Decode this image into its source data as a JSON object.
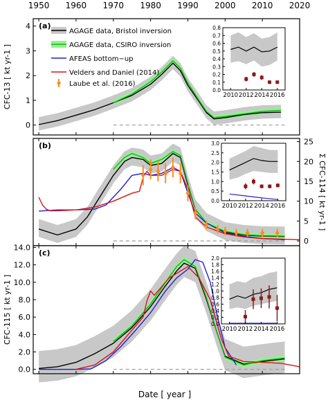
{
  "figure": {
    "xaxis": {
      "label": "Date [ year ]",
      "ticks": [
        1950,
        1960,
        1970,
        1980,
        1990,
        2000,
        2010,
        2020
      ],
      "xlim": [
        1948.5,
        2020
      ]
    },
    "legend": [
      {
        "label": "AGAGE data, Bristol inversion",
        "color": "#000000",
        "style": "line-with-grey-band"
      },
      {
        "label": "AGAGE data, CSIRO inversion",
        "color": "#22aa22",
        "style": "line-with-green-band"
      },
      {
        "label": "AFEAS bottom−up",
        "color": "#1f1fd6",
        "style": "line"
      },
      {
        "label": "Velders and Daniel (2014)",
        "color": "#dd1111",
        "style": "line"
      },
      {
        "label": "Laube et al. (2016)",
        "color": "#ff8c1a",
        "style": "marker-errorbar"
      }
    ],
    "colors": {
      "bristol": "#000000",
      "csiro": "#22aa22",
      "csiro_band": "#8ef58e",
      "band": "#c8c8c8",
      "afeas": "#1f1fd6",
      "velders": "#dd1111",
      "laube": "#ff8c1a",
      "inset_points": "#8b1a1a",
      "zero_line": "#999999"
    }
  },
  "chart_data": [
    {
      "type": "line",
      "panel_label": "(a)",
      "ylabel": "CFC-13 [ kt yr-1 ]",
      "ylim": [
        -0.4,
        4.3
      ],
      "yticks": [
        "0",
        "1",
        "2",
        "3",
        "4"
      ],
      "series": [
        {
          "name": "AGAGE data, Bristol inversion",
          "x": [
            1950,
            1955,
            1960,
            1965,
            1970,
            1975,
            1980,
            1983,
            1986,
            1988,
            1990,
            1993,
            1995,
            1997,
            2000,
            2005,
            2010,
            2015
          ],
          "y": [
            0.02,
            0.18,
            0.4,
            0.62,
            0.9,
            1.2,
            1.65,
            2.05,
            2.5,
            2.2,
            1.6,
            0.95,
            0.5,
            0.25,
            0.3,
            0.42,
            0.5,
            0.52
          ],
          "band_half_width": 0.3
        },
        {
          "name": "AGAGE data, CSIRO inversion",
          "x": [
            1970,
            1975,
            1980,
            1983,
            1986,
            1988,
            1990,
            1993,
            1995,
            1997,
            2000,
            2005,
            2010,
            2015
          ],
          "y": [
            0.9,
            1.25,
            1.75,
            2.15,
            2.6,
            2.3,
            1.7,
            1.0,
            0.55,
            0.3,
            0.35,
            0.45,
            0.55,
            0.6
          ]
        }
      ],
      "inset": {
        "xlim": [
          2009,
          2017
        ],
        "xticks": [
          2010,
          2012,
          2014,
          2016
        ],
        "ylim": [
          0,
          0.8
        ],
        "yticks": [
          "0.0",
          "0.1",
          "0.2",
          "0.3",
          "0.4",
          "0.5",
          "0.6",
          "0.7",
          "0.8"
        ],
        "line": {
          "x": [
            2010,
            2011,
            2012,
            2013,
            2014,
            2015,
            2016
          ],
          "y": [
            0.52,
            0.55,
            0.5,
            0.55,
            0.49,
            0.5,
            0.55
          ]
        },
        "band": {
          "x": [
            2010,
            2011,
            2012,
            2013,
            2014,
            2015,
            2016
          ],
          "lo": [
            0.35,
            0.37,
            0.33,
            0.38,
            0.3,
            0.32,
            0.38
          ],
          "hi": [
            0.7,
            0.74,
            0.68,
            0.73,
            0.66,
            0.68,
            0.74
          ]
        },
        "points": {
          "x": [
            2012,
            2013,
            2014,
            2015,
            2016
          ],
          "y": [
            0.14,
            0.2,
            0.16,
            0.1,
            0.1
          ],
          "err": [
            0.03,
            0.03,
            0.03,
            0.02,
            0.02
          ]
        }
      }
    },
    {
      "type": "line",
      "panel_label": "(b)",
      "ylabel": "Σ CFC-114 [ kt yr-1 ]",
      "ylim": [
        -1.2,
        25.8
      ],
      "yticks": [
        "0",
        "5",
        "10",
        "15",
        "20",
        "25"
      ],
      "series": [
        {
          "name": "AGAGE data, Bristol inversion",
          "x": [
            1950,
            1955,
            1960,
            1963,
            1967,
            1970,
            1973,
            1975,
            1978,
            1980,
            1983,
            1986,
            1988,
            1990,
            1992,
            1995,
            2000,
            2005,
            2010,
            2016
          ],
          "y": [
            3.0,
            1.5,
            3.0,
            6.0,
            12.0,
            16.5,
            20.0,
            21.0,
            20.5,
            19.0,
            19.5,
            22.0,
            21.0,
            14.0,
            8.0,
            4.5,
            2.2,
            1.5,
            1.2,
            1.1
          ],
          "band_half_width": 2.5
        },
        {
          "name": "AGAGE data, CSIRO inversion",
          "x": [
            1970,
            1973,
            1975,
            1978,
            1980,
            1983,
            1986,
            1988,
            1990,
            1992,
            1995,
            2000,
            2005,
            2010,
            2016
          ],
          "y": [
            18.0,
            21.0,
            22.0,
            21.0,
            19.5,
            20.5,
            22.5,
            21.5,
            14.5,
            8.0,
            4.5,
            2.4,
            1.6,
            1.3,
            1.2
          ]
        },
        {
          "name": "AFEAS bottom−up",
          "x": [
            1950,
            1955,
            1960,
            1965,
            1968,
            1972,
            1975,
            1978,
            1980,
            1983,
            1986,
            1988,
            1990,
            1992,
            1995,
            2000,
            2005,
            2010,
            2016
          ],
          "y": [
            7.5,
            7.8,
            7.8,
            8.0,
            9.0,
            13.0,
            16.5,
            17.0,
            16.5,
            17.0,
            18.5,
            17.5,
            12.0,
            7.0,
            4.5,
            2.0,
            1.2,
            0.6,
            0.3
          ]
        },
        {
          "name": "Velders and Daniel (2014)",
          "x": [
            1950,
            1951,
            1952,
            1953,
            1955,
            1960,
            1965,
            1970,
            1975,
            1977,
            1978,
            1979,
            1980,
            1983,
            1986,
            1988,
            1990,
            1992,
            1995,
            2000,
            2005,
            2010,
            2020
          ],
          "y": [
            11.0,
            9.0,
            8.0,
            7.6,
            7.6,
            7.8,
            8.5,
            10.0,
            12.0,
            12.5,
            16.0,
            17.5,
            16.5,
            16.5,
            18.0,
            17.5,
            13.0,
            6.0,
            3.5,
            1.8,
            1.0,
            0.6,
            0.3
          ]
        },
        {
          "name": "Laube et al. (2016)",
          "x": [
            1978,
            1980,
            1982,
            1984,
            1986,
            1988,
            1990,
            1992,
            1995,
            1998,
            2000,
            2003,
            2006,
            2010,
            2014
          ],
          "y": [
            16.5,
            18.0,
            17.5,
            17.0,
            18.5,
            17.0,
            12.0,
            7.0,
            4.0,
            3.0,
            2.5,
            2.0,
            2.0,
            2.0,
            2.0
          ],
          "err": [
            2.5,
            2.5,
            2.5,
            2.5,
            2.5,
            2.5,
            2.0,
            1.5,
            1.0,
            1.0,
            1.0,
            1.0,
            1.0,
            1.0,
            1.0
          ]
        }
      ],
      "inset": {
        "xlim": [
          2009,
          2017
        ],
        "xticks": [
          2010,
          2012,
          2014,
          2016
        ],
        "ylim": [
          0,
          3.0
        ],
        "yticks": [
          "0.0",
          "0.5",
          "1.0",
          "1.5",
          "2.0",
          "2.5",
          "3.0"
        ],
        "line": {
          "x": [
            2010,
            2011,
            2012,
            2013,
            2014,
            2015,
            2016
          ],
          "y": [
            1.6,
            1.8,
            2.0,
            2.2,
            2.1,
            2.05,
            2.05
          ]
        },
        "band": {
          "x": [
            2010,
            2011,
            2012,
            2013,
            2014,
            2015,
            2016
          ],
          "lo": [
            1.1,
            1.2,
            1.4,
            1.55,
            1.5,
            1.45,
            1.45
          ],
          "hi": [
            2.2,
            2.4,
            2.6,
            2.85,
            2.75,
            2.65,
            2.65
          ]
        },
        "blue_line": {
          "x": [
            2010,
            2012,
            2014,
            2016
          ],
          "y": [
            0.35,
            0.25,
            0.15,
            0.06
          ]
        },
        "points": {
          "x": [
            2012,
            2013,
            2014,
            2015,
            2016
          ],
          "y": [
            0.75,
            1.0,
            0.75,
            0.75,
            0.8
          ],
          "err": [
            0.15,
            0.15,
            0.1,
            0.1,
            0.1
          ]
        }
      }
    },
    {
      "type": "line",
      "panel_label": "(c)",
      "ylabel": "CFC-115 [ kt yr-1 ]",
      "ylim": [
        -0.5,
        14.2
      ],
      "yticks": [
        "0.0",
        "2.0",
        "4.0",
        "6.0",
        "8.0",
        "10.0",
        "12.0",
        "14.0"
      ],
      "series": [
        {
          "name": "AGAGE data, Bristol inversion",
          "x": [
            1950,
            1955,
            1960,
            1965,
            1970,
            1975,
            1980,
            1984,
            1987,
            1989,
            1992,
            1995,
            1998,
            2000,
            2005,
            2010,
            2016
          ],
          "y": [
            0.1,
            0.3,
            0.8,
            1.8,
            3.0,
            4.8,
            7.2,
            9.6,
            11.3,
            12.2,
            11.6,
            8.0,
            4.0,
            1.5,
            0.6,
            0.9,
            1.2
          ],
          "band_half_width": 2.0
        },
        {
          "name": "AGAGE data, CSIRO inversion",
          "x": [
            1970,
            1975,
            1980,
            1984,
            1987,
            1989,
            1992,
            1995,
            1998,
            2000,
            2005,
            2010,
            2016
          ],
          "y": [
            3.2,
            5.0,
            7.5,
            10.0,
            11.8,
            12.6,
            11.8,
            8.2,
            4.0,
            1.4,
            0.5,
            1.0,
            1.3
          ]
        },
        {
          "name": "AFEAS bottom−up",
          "x": [
            1950,
            1960,
            1964,
            1968,
            1972,
            1976,
            1980,
            1984,
            1987,
            1990,
            1992,
            1994,
            1996,
            1998,
            2000,
            2003
          ],
          "y": [
            0.0,
            0.0,
            0.05,
            1.0,
            2.6,
            4.5,
            6.5,
            9.0,
            10.5,
            11.5,
            12.6,
            12.3,
            10.0,
            6.0,
            2.5,
            0.5
          ]
        },
        {
          "name": "Velders and Daniel (2014)",
          "x": [
            1960,
            1965,
            1970,
            1975,
            1978,
            1979,
            1980,
            1981,
            1985,
            1990,
            1993,
            1996,
            1999,
            2001,
            2005,
            2010,
            2015,
            2020
          ],
          "y": [
            0.0,
            0.5,
            2.0,
            4.5,
            6.0,
            7.8,
            9.0,
            8.5,
            10.5,
            11.8,
            10.5,
            8.0,
            3.5,
            1.5,
            0.9,
            0.8,
            0.7,
            0.3
          ]
        }
      ],
      "inset": {
        "xlim": [
          2009,
          2017
        ],
        "xticks": [
          2010,
          2012,
          2014,
          2016
        ],
        "ylim": [
          0,
          2.0
        ],
        "yticks": [
          "0.0",
          "0.2",
          "0.4",
          "0.6",
          "0.8",
          "1.0",
          "1.2",
          "1.4",
          "1.6",
          "1.8",
          "2.0"
        ],
        "line": {
          "x": [
            2010,
            2011,
            2012,
            2013,
            2014,
            2015,
            2016
          ],
          "y": [
            0.75,
            0.85,
            0.78,
            0.9,
            0.95,
            1.05,
            1.1
          ]
        },
        "band": {
          "x": [
            2010,
            2011,
            2012,
            2013,
            2014,
            2015,
            2016
          ],
          "lo": [
            0.45,
            0.5,
            0.45,
            0.55,
            0.6,
            0.65,
            0.7
          ],
          "hi": [
            1.2,
            1.3,
            1.25,
            1.4,
            1.45,
            1.55,
            1.6
          ]
        },
        "blue_line": {
          "x": [
            2010,
            2016
          ],
          "y": [
            0.02,
            0.02
          ]
        },
        "points": {
          "x": [
            2012,
            2013,
            2014,
            2015,
            2016
          ],
          "y": [
            0.22,
            0.75,
            0.78,
            0.82,
            0.48
          ],
          "err": [
            0.2,
            0.3,
            0.3,
            0.35,
            0.4
          ]
        }
      }
    }
  ]
}
